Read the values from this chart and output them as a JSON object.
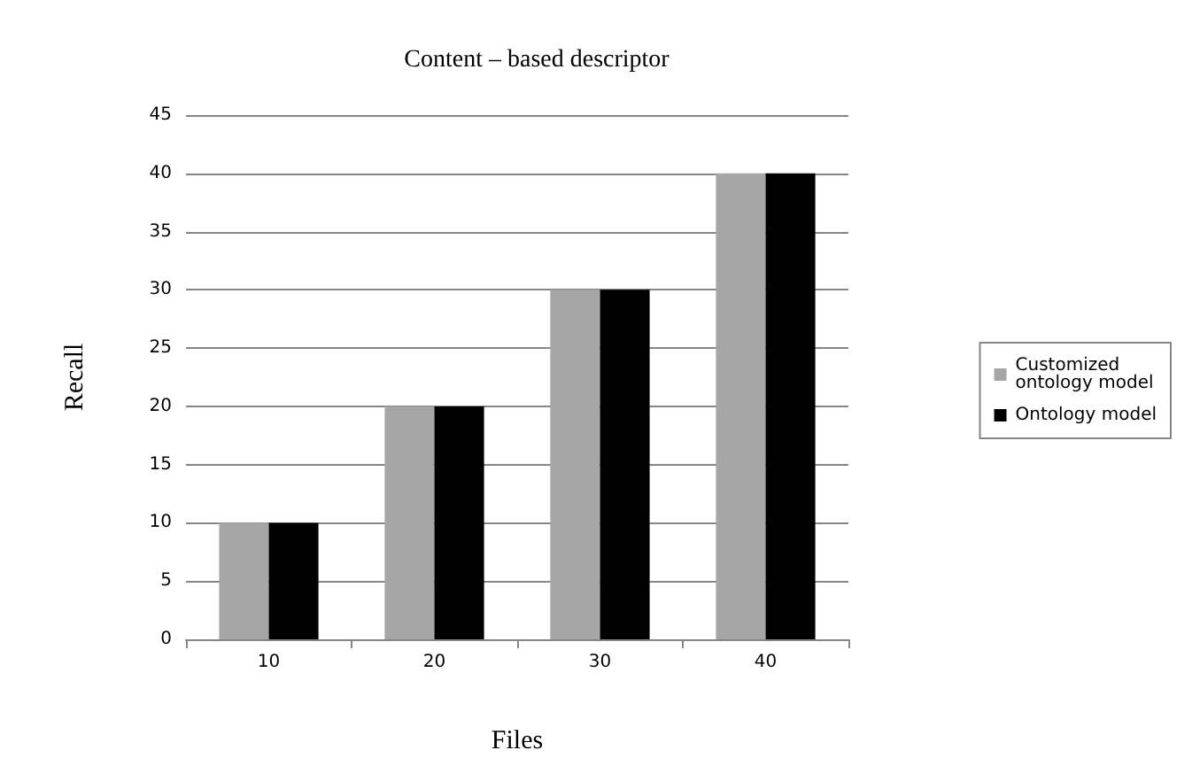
{
  "chart_data": {
    "type": "bar",
    "title": "Content – based descriptor",
    "xlabel": "Files",
    "ylabel": "Recall",
    "categories": [
      "10",
      "20",
      "30",
      "40"
    ],
    "series": [
      {
        "name": "Customized ontology model",
        "color": "#a6a6a6",
        "values": [
          10,
          20,
          30,
          40
        ]
      },
      {
        "name": "Ontology model",
        "color": "#000000",
        "values": [
          10,
          20,
          30,
          40
        ]
      }
    ],
    "ylim": [
      0,
      45
    ],
    "yticks": [
      0,
      5,
      10,
      15,
      20,
      25,
      30,
      35,
      40,
      45
    ],
    "grid": "y",
    "legend": "right"
  }
}
